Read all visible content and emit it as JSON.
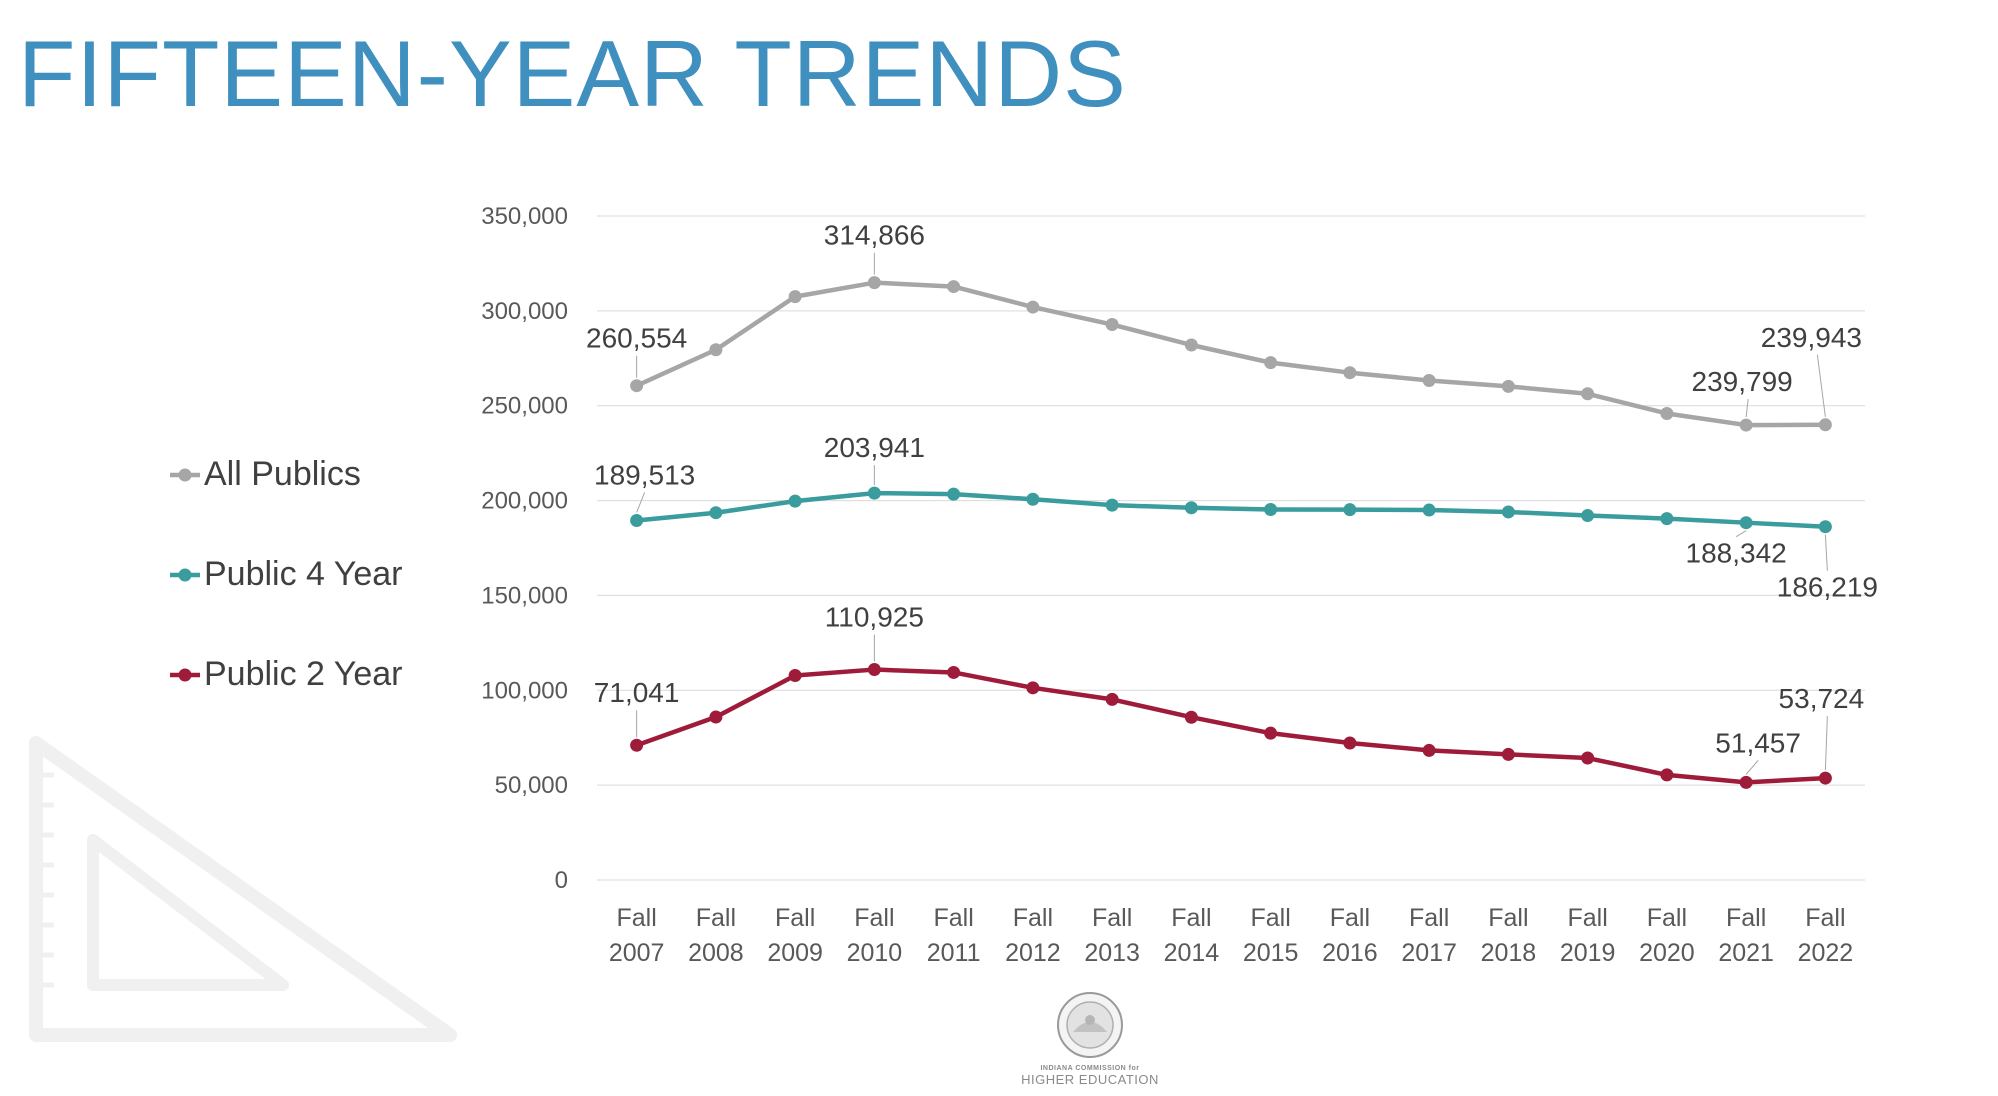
{
  "title": "FIFTEEN-YEAR TRENDS",
  "chart_data": {
    "type": "line",
    "title": "",
    "xlabel": "",
    "ylabel": "",
    "ylim": [
      0,
      350000
    ],
    "y_ticks": [
      0,
      50000,
      100000,
      150000,
      200000,
      250000,
      300000,
      350000
    ],
    "y_tick_labels": [
      "0",
      "50,000",
      "100,000",
      "150,000",
      "200,000",
      "250,000",
      "300,000",
      "350,000"
    ],
    "categories": [
      [
        "Fall",
        "2007"
      ],
      [
        "Fall",
        "2008"
      ],
      [
        "Fall",
        "2009"
      ],
      [
        "Fall",
        "2010"
      ],
      [
        "Fall",
        "2011"
      ],
      [
        "Fall",
        "2012"
      ],
      [
        "Fall",
        "2013"
      ],
      [
        "Fall",
        "2014"
      ],
      [
        "Fall",
        "2015"
      ],
      [
        "Fall",
        "2016"
      ],
      [
        "Fall",
        "2017"
      ],
      [
        "Fall",
        "2018"
      ],
      [
        "Fall",
        "2019"
      ],
      [
        "Fall",
        "2020"
      ],
      [
        "Fall",
        "2021"
      ],
      [
        "Fall",
        "2022"
      ]
    ],
    "grid": true,
    "legend_position": "left",
    "series": [
      {
        "name": "All Publics",
        "color": "#a6a6a6",
        "values": [
          260554,
          279500,
          307500,
          314866,
          312800,
          302000,
          292800,
          282000,
          272700,
          267400,
          263300,
          260200,
          256300,
          245900,
          239799,
          239943
        ],
        "labels": [
          {
            "index": 0,
            "text": "260,554"
          },
          {
            "index": 3,
            "text": "314,866"
          },
          {
            "index": 14,
            "text": "239,799"
          },
          {
            "index": 15,
            "text": "239,943"
          }
        ]
      },
      {
        "name": "Public 4 Year",
        "color": "#3a9c9c",
        "values": [
          189513,
          193600,
          199700,
          203941,
          203400,
          200700,
          197600,
          196200,
          195300,
          195200,
          195000,
          194000,
          192100,
          190500,
          188342,
          186219
        ],
        "labels": [
          {
            "index": 0,
            "text": "189,513"
          },
          {
            "index": 3,
            "text": "203,941"
          },
          {
            "index": 14,
            "text": "188,342"
          },
          {
            "index": 15,
            "text": "186,219"
          }
        ]
      },
      {
        "name": "Public 2 Year",
        "color": "#9e1c3a",
        "values": [
          71041,
          85900,
          107800,
          110925,
          109400,
          101300,
          95200,
          85800,
          77400,
          72200,
          68300,
          66200,
          64300,
          55400,
          51457,
          53724
        ],
        "labels": [
          {
            "index": 0,
            "text": "71,041"
          },
          {
            "index": 3,
            "text": "110,925"
          },
          {
            "index": 14,
            "text": "51,457"
          },
          {
            "index": 15,
            "text": "53,724"
          }
        ]
      }
    ]
  },
  "footer": {
    "seal_line1": "INDIANA COMMISSION for",
    "seal_line2": "HIGHER EDUCATION"
  }
}
